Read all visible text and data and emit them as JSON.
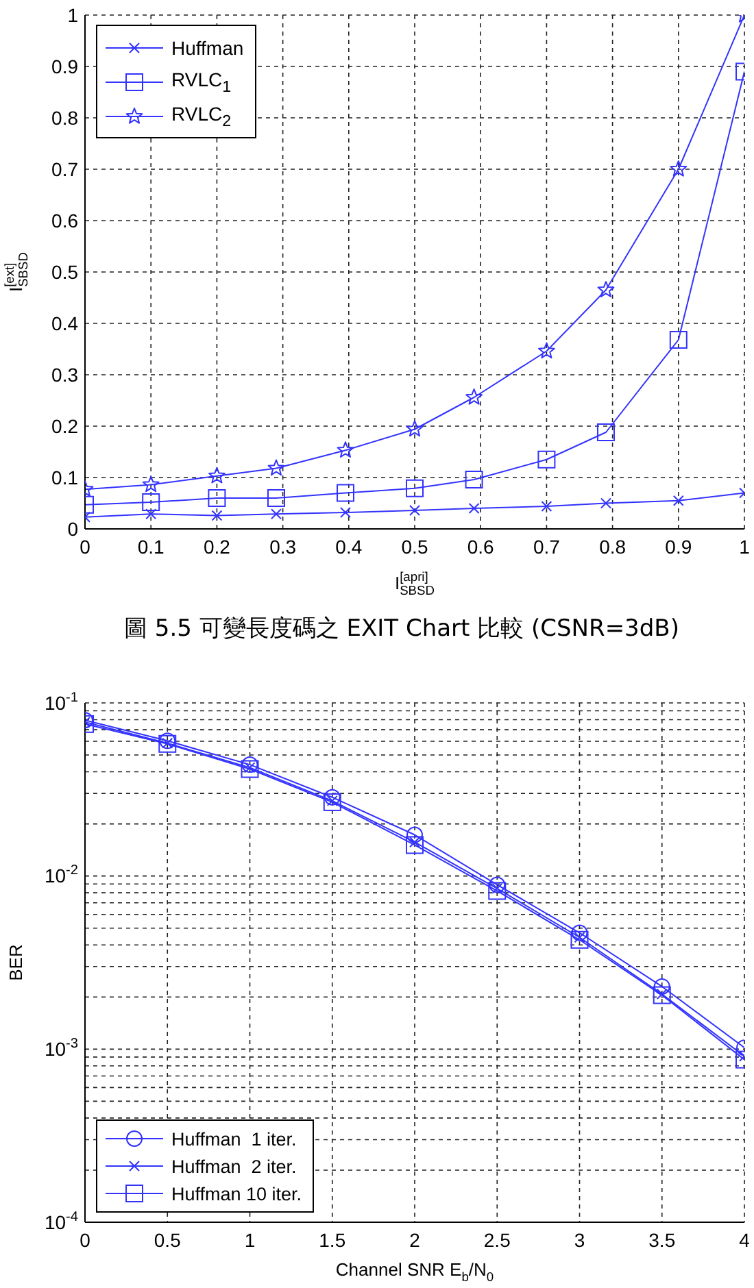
{
  "chart_data": [
    {
      "type": "line",
      "xlabel": "I$^{[apri]}$$_{SBSD}$",
      "ylabel": "I$^{[ext]}$$_{SBSD}$",
      "annotations": [
        "圖 5.5 可變長度碼之 EXIT Chart 比較 (CSNR=3dB)"
      ],
      "x": [
        0,
        0.1,
        0.2,
        0.29,
        0.395,
        0.5,
        0.59,
        0.7,
        0.79,
        0.9,
        1
      ],
      "series": [
        {
          "name": "Huffman",
          "color": "#3333ff",
          "marker": "cross",
          "values": [
            0.023,
            0.029,
            0.026,
            0.029,
            0.032,
            0.036,
            0.04,
            0.044,
            0.05,
            0.055,
            0.07
          ]
        },
        {
          "name": "RVLC$_{1}$",
          "color": "#3333ff",
          "marker": "square",
          "values": [
            0.047,
            0.052,
            0.06,
            0.06,
            0.07,
            0.079,
            0.096,
            0.135,
            0.188,
            0.368,
            0.89
          ]
        },
        {
          "name": "RVLC$_{2}$",
          "color": "#3333ff",
          "marker": "star",
          "values": [
            0.077,
            0.086,
            0.103,
            0.118,
            0.153,
            0.194,
            0.256,
            0.346,
            0.465,
            0.7,
            1.0
          ]
        }
      ],
      "xlim": [
        0,
        1
      ],
      "ylim": [
        0,
        1
      ],
      "xticks": [
        0,
        0.1,
        0.2,
        0.3,
        0.4,
        0.5,
        0.6,
        0.7,
        0.8,
        0.9,
        1
      ],
      "yticks": [
        0,
        0.1,
        0.2,
        0.3,
        0.4,
        0.5,
        0.6,
        0.7,
        0.8,
        0.9,
        1
      ],
      "grid": true,
      "legend": "top left"
    },
    {
      "type": "line",
      "xlabel": "Channel SNR E$_{b}$/N$_{0}$",
      "ylabel": "BER",
      "x": [
        0,
        0.5,
        1,
        1.5,
        2,
        2.5,
        3,
        3.5,
        4
      ],
      "series": [
        {
          "name": "Huffman  1 iter.",
          "color": "#3333ff",
          "marker": "circle",
          "values": [
            0.0795,
            0.0604,
            0.044,
            0.0285,
            0.0173,
            0.0089,
            0.0047,
            0.0023,
            0.00102
          ]
        },
        {
          "name": "Huffman  2 iter.",
          "color": "#3333ff",
          "marker": "cross",
          "values": [
            0.0775,
            0.0585,
            0.0423,
            0.0272,
            0.0157,
            0.00847,
            0.00442,
            0.00208,
            0.00091
          ]
        },
        {
          "name": "Huffman 10 iter.",
          "color": "#3333ff",
          "marker": "square",
          "values": [
            0.0755,
            0.058,
            0.0415,
            0.0267,
            0.0151,
            0.0082,
            0.00428,
            0.00205,
            0.00087
          ]
        }
      ],
      "xlim": [
        0,
        4
      ],
      "ylim": [
        0.0001,
        0.1
      ],
      "xticks": [
        0,
        0.5,
        1,
        1.5,
        2,
        2.5,
        3,
        3.5,
        4
      ],
      "yticks": [
        {
          "value": 0.0001,
          "label": "10$^{-4}$"
        },
        {
          "value": 0.0002,
          "label": null
        },
        {
          "value": 0.0003,
          "label": null
        },
        {
          "value": 0.0004,
          "label": null
        },
        {
          "value": 0.0005,
          "label": null
        },
        {
          "value": 0.0006,
          "label": null
        },
        {
          "value": 0.0007,
          "label": null
        },
        {
          "value": 0.0008,
          "label": null
        },
        {
          "value": 0.0009,
          "label": null
        },
        {
          "value": 0.001,
          "label": "10$^{-3}$"
        },
        {
          "value": 0.002,
          "label": null
        },
        {
          "value": 0.003,
          "label": null
        },
        {
          "value": 0.004,
          "label": null
        },
        {
          "value": 0.005,
          "label": null
        },
        {
          "value": 0.006,
          "label": null
        },
        {
          "value": 0.007,
          "label": null
        },
        {
          "value": 0.008,
          "label": null
        },
        {
          "value": 0.009,
          "label": null
        },
        {
          "value": 0.01,
          "label": "10$^{-2}$"
        },
        {
          "value": 0.02,
          "label": null
        },
        {
          "value": 0.03,
          "label": null
        },
        {
          "value": 0.04,
          "label": null
        },
        {
          "value": 0.05,
          "label": null
        },
        {
          "value": 0.06,
          "label": null
        },
        {
          "value": 0.07,
          "label": null
        },
        {
          "value": 0.08,
          "label": null
        },
        {
          "value": 0.09,
          "label": null
        },
        {
          "value": 0.1,
          "label": "10$^{-1}$"
        }
      ],
      "log": "y",
      "grid": true,
      "legend": "bottom left"
    }
  ]
}
